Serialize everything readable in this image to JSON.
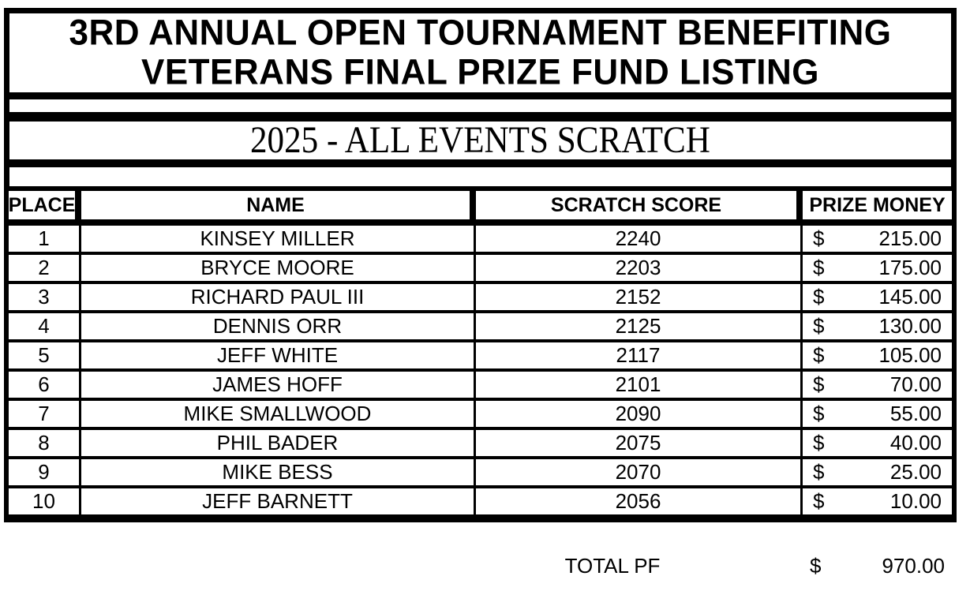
{
  "colors": {
    "ink": "#000000",
    "paper": "#ffffff"
  },
  "title": {
    "line1": "3RD ANNUAL OPEN TOURNAMENT BENEFITING",
    "line2": "VETERANS FINAL PRIZE FUND LISTING"
  },
  "subtitle": "2025 - ALL EVENTS SCRATCH",
  "table": {
    "headers": {
      "place": "PLACE",
      "name": "NAME",
      "score": "SCRATCH SCORE",
      "prize": "PRIZE MONEY"
    },
    "rows": [
      {
        "place": "1",
        "name": "KINSEY MILLER",
        "score": "2240",
        "currency": "$",
        "prize": "215.00"
      },
      {
        "place": "2",
        "name": "BRYCE MOORE",
        "score": "2203",
        "currency": "$",
        "prize": "175.00"
      },
      {
        "place": "3",
        "name": "RICHARD PAUL III",
        "score": "2152",
        "currency": "$",
        "prize": "145.00"
      },
      {
        "place": "4",
        "name": "DENNIS ORR",
        "score": "2125",
        "currency": "$",
        "prize": "130.00"
      },
      {
        "place": "5",
        "name": "JEFF WHITE",
        "score": "2117",
        "currency": "$",
        "prize": "105.00"
      },
      {
        "place": "6",
        "name": "JAMES HOFF",
        "score": "2101",
        "currency": "$",
        "prize": "70.00"
      },
      {
        "place": "7",
        "name": "MIKE SMALLWOOD",
        "score": "2090",
        "currency": "$",
        "prize": "55.00"
      },
      {
        "place": "8",
        "name": "PHIL BADER",
        "score": "2075",
        "currency": "$",
        "prize": "40.00"
      },
      {
        "place": "9",
        "name": "MIKE BESS",
        "score": "2070",
        "currency": "$",
        "prize": "25.00"
      },
      {
        "place": "10",
        "name": "JEFF BARNETT",
        "score": "2056",
        "currency": "$",
        "prize": "10.00"
      }
    ]
  },
  "total": {
    "label": "TOTAL PF",
    "currency": "$",
    "amount": "970.00"
  }
}
